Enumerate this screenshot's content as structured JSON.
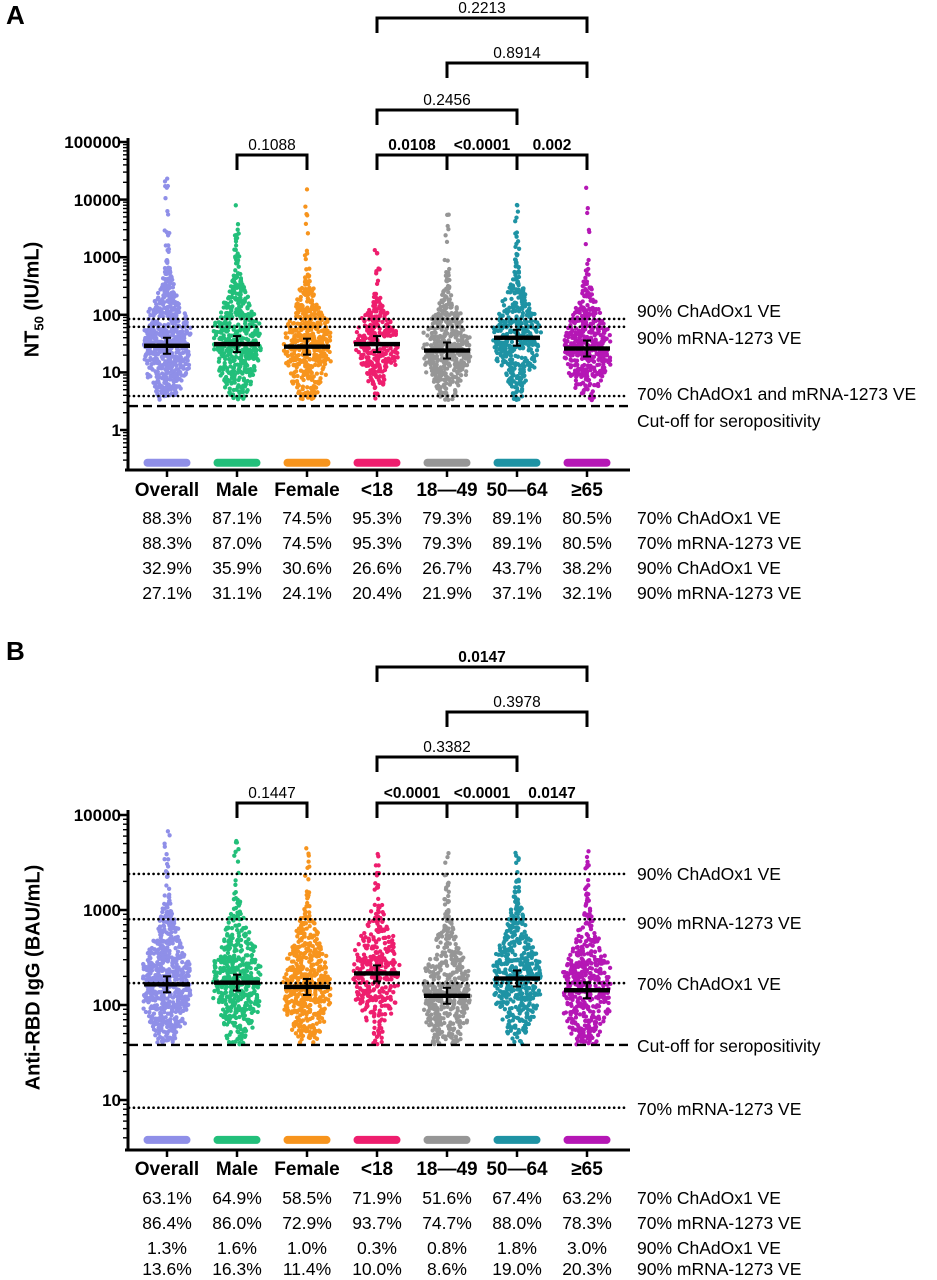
{
  "chart_data": [
    {
      "panel": "A",
      "type": "scatter",
      "subtype": "beeswarm-log",
      "ylabel_prefix": "NT",
      "ylabel_sub": "50",
      "ylabel_suffix": " (IU/mL)",
      "yscale": "log",
      "ylim": [
        0.2,
        100000
      ],
      "ytick_labels": [
        "100000",
        "10000",
        "1000",
        "100",
        "10",
        "1"
      ],
      "ytick_values": [
        100000,
        10000,
        1000,
        100,
        10,
        1
      ],
      "categories": [
        "Overall",
        "Male",
        "Female",
        "<18",
        "18—49",
        "50—64",
        "≥65"
      ],
      "colors": [
        "#8F8FE8",
        "#22BF7A",
        "#F7941D",
        "#EE1E6E",
        "#969696",
        "#1E93A4",
        "#B517B5"
      ],
      "group_medians": [
        29,
        31,
        28,
        31,
        24,
        40,
        26
      ],
      "group_n": [
        620,
        470,
        470,
        300,
        440,
        440,
        440
      ],
      "group_log_sd": [
        0.62,
        0.6,
        0.58,
        0.4,
        0.52,
        0.52,
        0.55
      ],
      "group_max": [
        28000,
        9000,
        18000,
        2200,
        6000,
        9500,
        21000
      ],
      "group_min": 3.3,
      "seronegative_band_value": 0.27,
      "reference_lines": [
        {
          "label": "90% ChAdOx1 VE",
          "value": 85,
          "style": "dotted"
        },
        {
          "label": "90% mRNA-1273 VE",
          "value": 62,
          "style": "dotted"
        },
        {
          "label": "70% ChAdOx1 and mRNA-1273 VE",
          "value": 3.9,
          "style": "dotted"
        },
        {
          "label": "Cut-off for seropositivity",
          "value": 2.6,
          "style": "dashed"
        }
      ],
      "comparisons": [
        {
          "group1": "<18",
          "group2": "≥65",
          "p": "0.2213",
          "bold": false
        },
        {
          "group1": "18—49",
          "group2": "≥65",
          "p": "0.8914",
          "bold": false
        },
        {
          "group1": "<18",
          "group2": "50—64",
          "p": "0.2456",
          "bold": false
        },
        {
          "group1": "Male",
          "group2": "Female",
          "p": "0.1088",
          "bold": false
        },
        {
          "group1": "<18",
          "group2": "18—49",
          "p": "0.0108",
          "bold": true
        },
        {
          "group1": "18—49",
          "group2": "50—64",
          "p": "<0.0001",
          "bold": true
        },
        {
          "group1": "50—64",
          "group2": "≥65",
          "p": "0.002",
          "bold": true
        }
      ],
      "table_rows": [
        {
          "values": [
            "88.3%",
            "87.1%",
            "74.5%",
            "95.3%",
            "79.3%",
            "89.1%",
            "80.5%"
          ],
          "label": "70% ChAdOx1 VE"
        },
        {
          "values": [
            "88.3%",
            "87.0%",
            "74.5%",
            "95.3%",
            "79.3%",
            "89.1%",
            "80.5%"
          ],
          "label": "70% mRNA-1273 VE"
        },
        {
          "values": [
            "32.9%",
            "35.9%",
            "30.6%",
            "26.6%",
            "26.7%",
            "43.7%",
            "38.2%"
          ],
          "label": "90% ChAdOx1 VE"
        },
        {
          "values": [
            "27.1%",
            "31.1%",
            "24.1%",
            "20.4%",
            "21.9%",
            "37.1%",
            "32.1%"
          ],
          "label": "90% mRNA-1273 VE"
        }
      ]
    },
    {
      "panel": "B",
      "type": "scatter",
      "subtype": "beeswarm-log",
      "ylabel": "Anti-RBD IgG (BAU/mL)",
      "yscale": "log",
      "ylim": [
        3,
        10000
      ],
      "ytick_labels": [
        "10000",
        "1000",
        "100",
        "10"
      ],
      "ytick_values": [
        10000,
        1000,
        100,
        10
      ],
      "categories": [
        "Overall",
        "Male",
        "Female",
        "<18",
        "18—49",
        "50—64",
        "≥65"
      ],
      "colors": [
        "#8F8FE8",
        "#22BF7A",
        "#F7941D",
        "#EE1E6E",
        "#969696",
        "#1E93A4",
        "#B517B5"
      ],
      "group_medians": [
        165,
        172,
        155,
        215,
        125,
        190,
        143
      ],
      "group_n": [
        640,
        480,
        480,
        330,
        460,
        460,
        460
      ],
      "group_log_sd": [
        0.42,
        0.42,
        0.42,
        0.38,
        0.42,
        0.4,
        0.42
      ],
      "group_max": [
        7200,
        5600,
        5600,
        4400,
        4000,
        5000,
        5600
      ],
      "group_min": 38.5,
      "seronegative_band_value": 3.8,
      "reference_lines": [
        {
          "label": "90% ChAdOx1 VE",
          "value": 2400,
          "style": "dotted"
        },
        {
          "label": "90% mRNA-1273 VE",
          "value": 800,
          "style": "dotted"
        },
        {
          "label": "70% ChAdOx1 VE",
          "value": 170,
          "style": "dotted"
        },
        {
          "label": "Cut-off for seropositivity",
          "value": 38,
          "style": "dashed"
        },
        {
          "label": "70% mRNA-1273 VE",
          "value": 8.3,
          "style": "dotted"
        }
      ],
      "comparisons": [
        {
          "group1": "<18",
          "group2": "≥65",
          "p": "0.0147",
          "bold": true
        },
        {
          "group1": "18—49",
          "group2": "≥65",
          "p": "0.3978",
          "bold": false
        },
        {
          "group1": "<18",
          "group2": "50—64",
          "p": "0.3382",
          "bold": false
        },
        {
          "group1": "Male",
          "group2": "Female",
          "p": "0.1447",
          "bold": false
        },
        {
          "group1": "<18",
          "group2": "18—49",
          "p": "<0.0001",
          "bold": true
        },
        {
          "group1": "18—49",
          "group2": "50—64",
          "p": "<0.0001",
          "bold": true
        },
        {
          "group1": "50—64",
          "group2": "≥65",
          "p": "0.0147",
          "bold": true
        }
      ],
      "table_rows": [
        {
          "values": [
            "63.1%",
            "64.9%",
            "58.5%",
            "71.9%",
            "51.6%",
            "67.4%",
            "63.2%"
          ],
          "label": "70% ChAdOx1 VE"
        },
        {
          "values": [
            "86.4%",
            "86.0%",
            "72.9%",
            "93.7%",
            "74.7%",
            "88.0%",
            "78.3%"
          ],
          "label": "70% mRNA-1273 VE"
        },
        {
          "values": [
            "1.3%",
            "1.6%",
            "1.0%",
            "0.3%",
            "0.8%",
            "1.8%",
            "3.0%"
          ],
          "label": "90% ChAdOx1 VE"
        },
        {
          "values": [
            "13.6%",
            "16.3%",
            "11.4%",
            "10.0%",
            "8.6%",
            "19.0%",
            "20.3%"
          ],
          "label": "90% mRNA-1273 VE"
        }
      ]
    }
  ]
}
